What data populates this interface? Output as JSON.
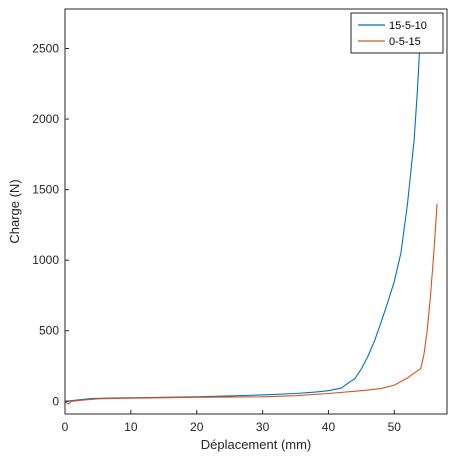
{
  "chart_data": {
    "type": "line",
    "xlabel": "Déplacement (mm)",
    "ylabel": "Charge (N)",
    "xlim": [
      0,
      58
    ],
    "ylim": [
      -90,
      2780
    ],
    "xticks": [
      0,
      10,
      20,
      30,
      40,
      50
    ],
    "yticks": [
      0,
      500,
      1000,
      1500,
      2000,
      2500
    ],
    "grid": false,
    "legend_position": "top-right",
    "series": [
      {
        "name": "15-5-10",
        "color": "#0072BD",
        "x": [
          0,
          2,
          4,
          6,
          10,
          15,
          20,
          25,
          30,
          35,
          38,
          40,
          42,
          43,
          44,
          45,
          46,
          47,
          48,
          49,
          50,
          51,
          52,
          53,
          53.5,
          54
        ],
        "y": [
          0,
          10,
          20,
          22,
          25,
          28,
          32,
          38,
          45,
          55,
          65,
          75,
          95,
          130,
          160,
          230,
          320,
          430,
          560,
          700,
          850,
          1050,
          1400,
          1850,
          2200,
          2640
        ]
      },
      {
        "name": "0-5-15",
        "color": "#D95319",
        "x": [
          0,
          0.5,
          1,
          3,
          5,
          10,
          20,
          30,
          35,
          40,
          45,
          48,
          50,
          52,
          53,
          54,
          54.5,
          55,
          55.5,
          56,
          56.5
        ],
        "y": [
          0,
          -20,
          0,
          10,
          18,
          22,
          28,
          32,
          40,
          55,
          75,
          90,
          115,
          165,
          200,
          230,
          330,
          500,
          750,
          1050,
          1400
        ]
      }
    ]
  }
}
